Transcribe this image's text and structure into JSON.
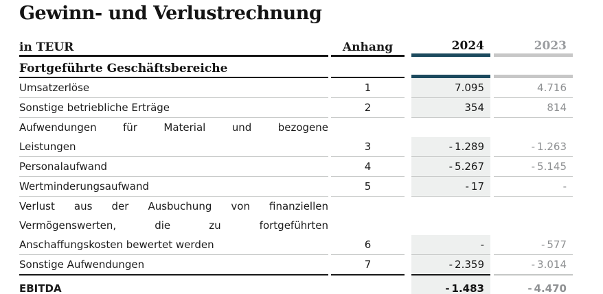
{
  "title": "Gewinn- und Verlustrechnung",
  "colors": {
    "accent_2024": "#1c4a5e",
    "bar_2023": "#c7c7c7",
    "column_2024_background": "#eef0ef",
    "muted_text": "#8f9193",
    "rule_light": "#c9cbca",
    "rule_dark": "#161616"
  },
  "table": {
    "unit_label": "in TEUR",
    "columns": {
      "anhang": "Anhang",
      "y2024": "2024",
      "y2023": "2023"
    },
    "section": "Fortgeführte Geschäftsbereiche",
    "rows": [
      {
        "label_lines": [
          "Umsatzerlöse"
        ],
        "anhang": "1",
        "y2024": "7.095",
        "y2023": "4.716"
      },
      {
        "label_lines": [
          "Sonstige betriebliche Erträge"
        ],
        "anhang": "2",
        "y2024": "354",
        "y2023": "814"
      },
      {
        "label_lines": [
          "Aufwendungen für Material und bezogene",
          "Leistungen"
        ],
        "anhang": "3",
        "y2024": "- 1.289",
        "y2023": "- 1.263"
      },
      {
        "label_lines": [
          "Personalaufwand"
        ],
        "anhang": "4",
        "y2024": "- 5.267",
        "y2023": "- 5.145"
      },
      {
        "label_lines": [
          "Wertminderungsaufwand"
        ],
        "anhang": "5",
        "y2024": "- 17",
        "y2023": "-"
      },
      {
        "label_lines": [
          "Verlust aus der Ausbuchung von finanziellen",
          "Vermögenswerten, die zu fortgeführten",
          "Anschaffungskosten bewertet werden"
        ],
        "anhang": "6",
        "y2024": "-",
        "y2023": "- 577"
      },
      {
        "label_lines": [
          "Sonstige Aufwendungen"
        ],
        "anhang": "7",
        "y2024": "- 2.359",
        "y2023": "- 3.014"
      }
    ],
    "total": {
      "label": "EBITDA",
      "y2024": "- 1.483",
      "y2023": "- 4.470"
    }
  }
}
